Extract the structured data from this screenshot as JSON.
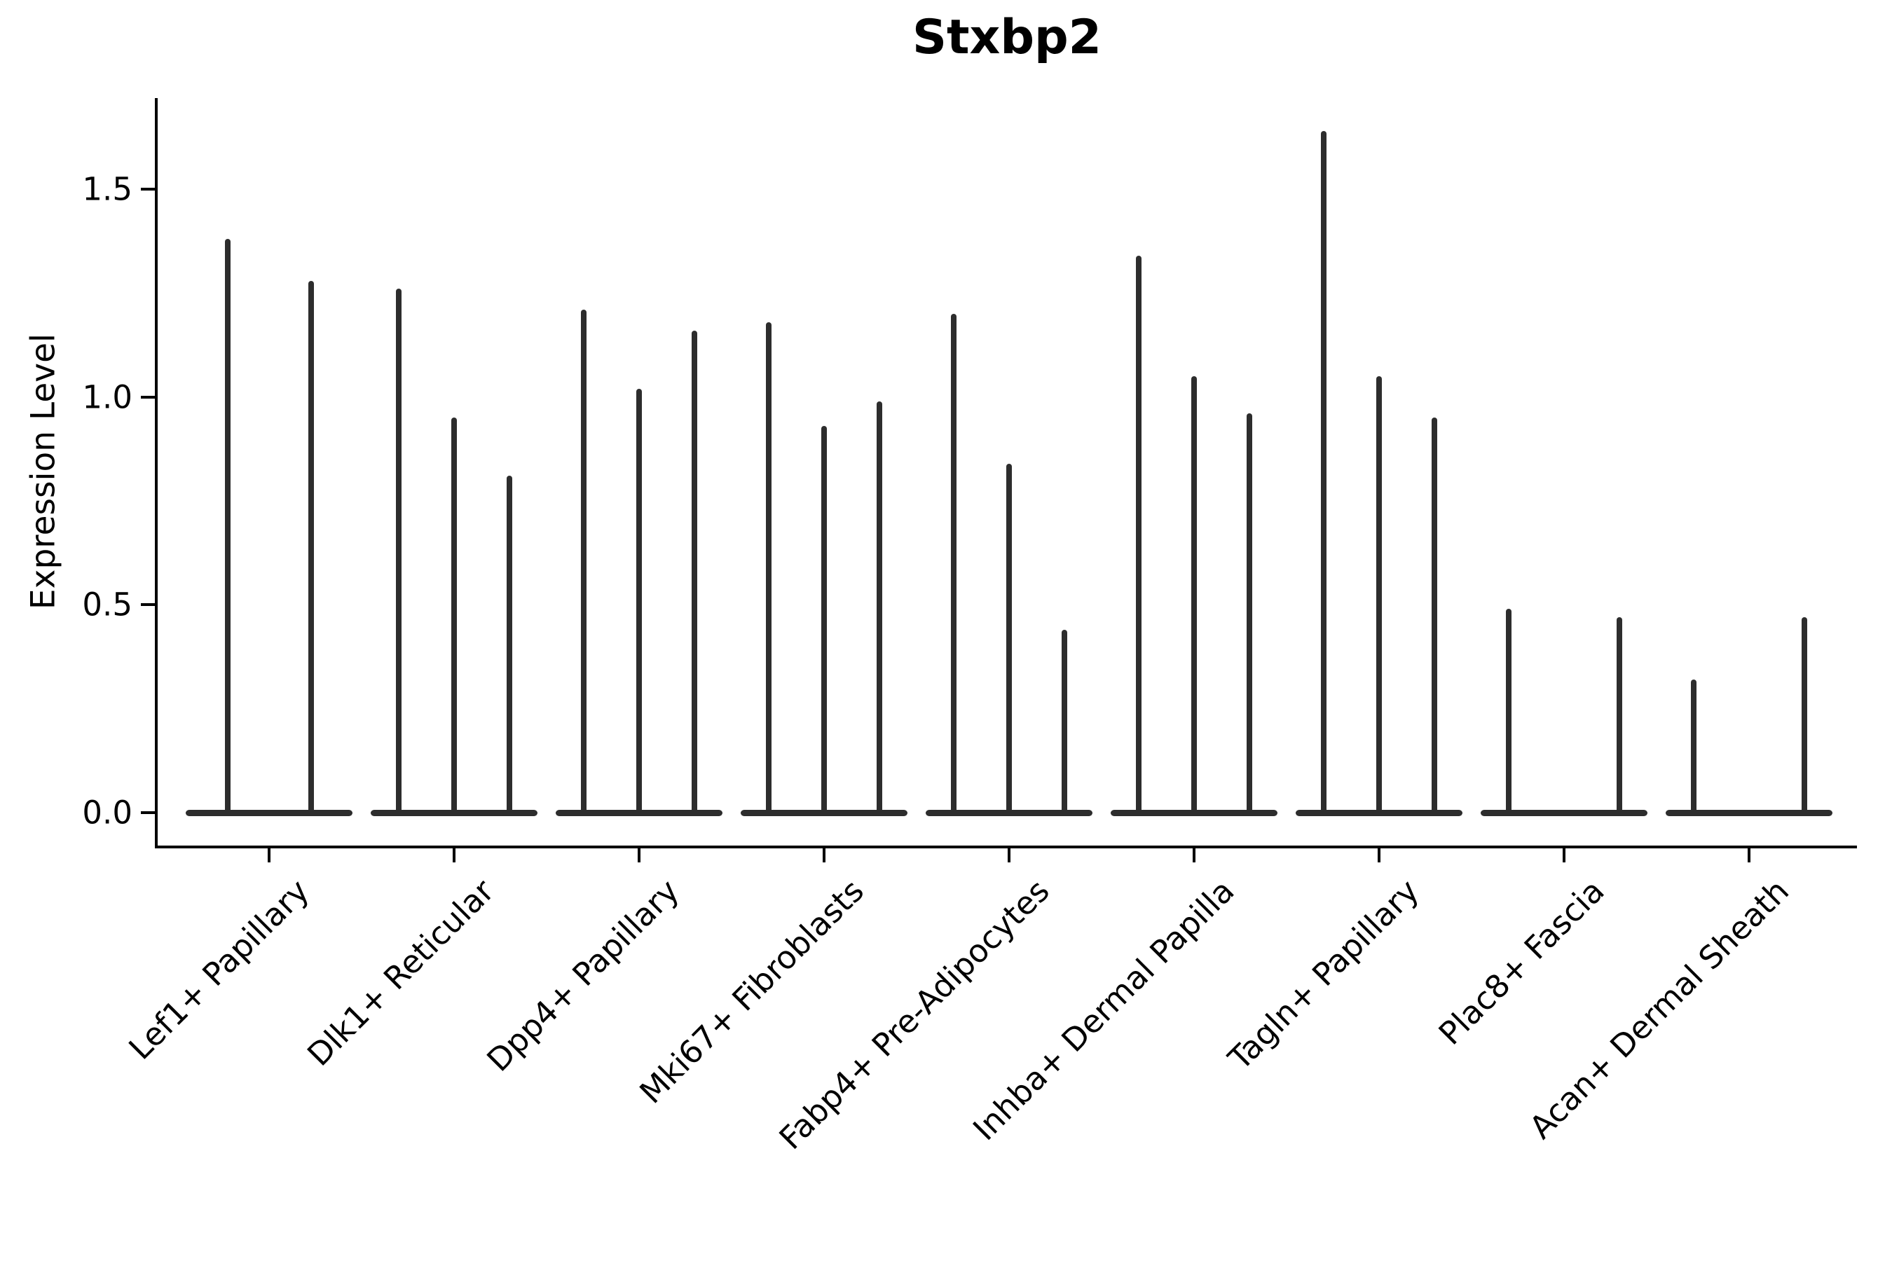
{
  "title": "Stxbp2",
  "ylabel": "Expression Level",
  "colors": {
    "violin": "#2d2d2d",
    "axis": "#000000",
    "text": "#000000",
    "background": "#ffffff"
  },
  "chart_data": {
    "type": "violin",
    "title": "Stxbp2",
    "xlabel": "",
    "ylabel": "Expression Level",
    "y_ticks": [
      0.0,
      0.5,
      1.0,
      1.5
    ],
    "ylim": [
      -0.08,
      1.72
    ],
    "grid": false,
    "legend": "none",
    "x_tick_rotation_deg": 45,
    "categories": [
      "Lef1+ Papillary",
      "Dlk1+ Reticular",
      "Dpp4+ Papillary",
      "Mki67+ Fibroblasts",
      "Fabp4+ Pre-Adipocytes",
      "Inhba+ Dermal Papilla",
      "Tagln+ Papillary",
      "Plac8+ Fascia",
      "Acan+ Dermal Sheath"
    ],
    "groups": [
      {
        "category": "Lef1+ Papillary",
        "violin_maxima": [
          1.38,
          1.28
        ]
      },
      {
        "category": "Dlk1+ Reticular",
        "violin_maxima": [
          1.26,
          0.95,
          0.81
        ]
      },
      {
        "category": "Dpp4+ Papillary",
        "violin_maxima": [
          1.21,
          1.02,
          1.16
        ]
      },
      {
        "category": "Mki67+ Fibroblasts",
        "violin_maxima": [
          1.18,
          0.93,
          0.99
        ]
      },
      {
        "category": "Fabp4+ Pre-Adipocytes",
        "violin_maxima": [
          1.2,
          0.84,
          0.44
        ]
      },
      {
        "category": "Inhba+ Dermal Papilla",
        "violin_maxima": [
          1.34,
          1.05,
          0.96
        ]
      },
      {
        "category": "Tagln+ Papillary",
        "violin_maxima": [
          1.64,
          1.05,
          0.95
        ]
      },
      {
        "category": "Plac8+ Fascia",
        "violin_maxima": [
          0.49,
          0,
          0.47
        ]
      },
      {
        "category": "Acan+ Dermal Sheath",
        "violin_maxima": [
          0.32,
          0,
          0.47
        ]
      }
    ],
    "description": "Each category shows extremely narrow violins: a wide flat base at expression 0 with a thin spike rising to the listed maximum. Zero entries are flat violins (base only)."
  }
}
